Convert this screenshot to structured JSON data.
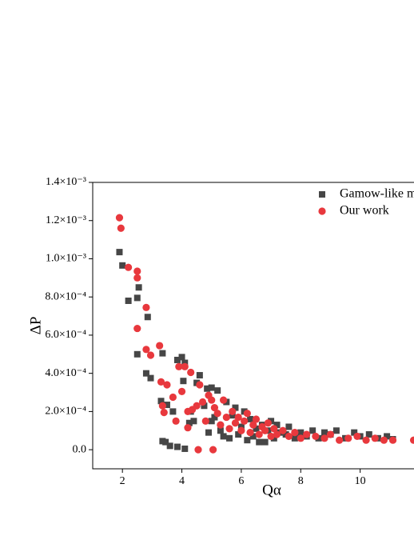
{
  "chart_data": {
    "type": "scatter",
    "x_label": "Qα",
    "y_label": "ΔP",
    "xlim": [
      1,
      12
    ],
    "ylim": [
      -0.0001,
      0.0014
    ],
    "xticks": [
      2,
      4,
      6,
      8,
      10
    ],
    "yticks": [
      {
        "value": 0,
        "label": "0.0"
      },
      {
        "value": 0.0002,
        "label": "2.0×10⁻⁴"
      },
      {
        "value": 0.0004,
        "label": "4.0×10⁻⁴"
      },
      {
        "value": 0.0006,
        "label": "6.0×10⁻⁴"
      },
      {
        "value": 0.0008,
        "label": "8.0×10⁻⁴"
      },
      {
        "value": 0.001,
        "label": "1.0×10⁻³"
      },
      {
        "value": 0.0012,
        "label": "1.2×10⁻³"
      },
      {
        "value": 0.0014,
        "label": "1.4×10⁻³"
      }
    ],
    "legend": "top-right",
    "series": [
      {
        "name": "Gamow-like model",
        "color": "#464646",
        "marker": "square",
        "x": [
          1.9,
          2.0,
          2.2,
          2.5,
          2.55,
          2.5,
          2.8,
          2.85,
          2.95,
          3.3,
          3.35,
          3.35,
          3.45,
          3.5,
          3.6,
          3.7,
          3.85,
          3.85,
          4.0,
          4.05,
          4.1,
          4.1,
          4.25,
          4.3,
          4.4,
          4.5,
          4.6,
          4.75,
          4.85,
          4.9,
          5.0,
          5.0,
          5.1,
          5.2,
          5.3,
          5.4,
          5.5,
          5.6,
          5.7,
          5.8,
          5.9,
          6.0,
          6.1,
          6.2,
          6.3,
          6.4,
          6.5,
          6.6,
          6.7,
          6.8,
          6.9,
          7.0,
          7.1,
          7.2,
          7.3,
          7.5,
          7.6,
          7.8,
          8.0,
          8.2,
          8.4,
          8.6,
          8.8,
          9.0,
          9.2,
          9.5,
          9.8,
          10.0,
          10.3,
          10.6,
          10.9,
          11.1
        ],
        "values": [
          0.001035,
          0.000965,
          0.00078,
          0.000795,
          0.00085,
          0.0005,
          0.0004,
          0.000695,
          0.000375,
          0.000255,
          0.000505,
          4.5e-05,
          4e-05,
          0.000235,
          2e-05,
          0.0002,
          1.5e-05,
          0.00047,
          0.000485,
          0.00036,
          0.000455,
          5e-06,
          0.00014,
          0.0002,
          0.00015,
          0.00035,
          0.00039,
          0.00023,
          0.00032,
          9e-05,
          0.000325,
          0.00015,
          0.00017,
          0.00031,
          0.0001,
          7e-05,
          0.00025,
          6e-05,
          0.00018,
          0.00022,
          8e-05,
          0.00012,
          0.0002,
          5e-05,
          0.00016,
          7e-05,
          0.00011,
          4e-05,
          0.00013,
          4e-05,
          0.0001,
          0.00015,
          6e-05,
          0.00013,
          9e-05,
          8e-05,
          0.00012,
          6e-05,
          9e-05,
          7e-05,
          0.0001,
          6e-05,
          9e-05,
          8e-05,
          0.0001,
          6e-05,
          9e-05,
          7e-05,
          8e-05,
          6e-05,
          7e-05,
          5.5e-05
        ]
      },
      {
        "name": "Our work",
        "color": "#e8383d",
        "marker": "circle",
        "x": [
          1.9,
          1.95,
          2.2,
          2.5,
          2.5,
          2.5,
          2.8,
          2.8,
          2.95,
          3.25,
          3.3,
          3.35,
          3.4,
          3.5,
          3.7,
          3.8,
          3.9,
          4.0,
          4.1,
          4.2,
          4.2,
          4.3,
          4.35,
          4.5,
          4.55,
          4.6,
          4.7,
          4.8,
          4.9,
          5.0,
          5.05,
          5.1,
          5.2,
          5.3,
          5.4,
          5.5,
          5.6,
          5.7,
          5.8,
          5.9,
          6.0,
          6.1,
          6.2,
          6.3,
          6.4,
          6.5,
          6.6,
          6.7,
          6.8,
          6.9,
          7.0,
          7.1,
          7.2,
          7.4,
          7.6,
          7.8,
          8.0,
          8.2,
          8.5,
          8.8,
          9.0,
          9.3,
          9.6,
          9.9,
          10.2,
          10.5,
          10.8,
          11.1,
          11.8
        ],
        "values": [
          0.001215,
          0.00116,
          0.000955,
          0.000935,
          0.0009,
          0.000635,
          0.000745,
          0.000525,
          0.000495,
          0.000545,
          0.000355,
          0.00023,
          0.000195,
          0.00034,
          0.000275,
          0.00015,
          0.000435,
          0.000305,
          0.000435,
          0.0002,
          0.000115,
          0.000405,
          0.00021,
          0.00023,
          0,
          0.00034,
          0.00025,
          0.00015,
          0.000285,
          0.00026,
          0,
          0.00022,
          0.00019,
          0.00013,
          0.00026,
          0.00017,
          0.00011,
          0.0002,
          0.00014,
          0.00017,
          0.0001,
          0.00015,
          0.00019,
          9e-05,
          0.00013,
          0.00016,
          8e-05,
          0.00012,
          0.0001,
          0.00014,
          7e-05,
          0.00011,
          8e-05,
          0.0001,
          7e-05,
          9e-05,
          6e-05,
          8e-05,
          7e-05,
          6e-05,
          8e-05,
          5e-05,
          6e-05,
          7e-05,
          5e-05,
          6e-05,
          5e-05,
          5e-05,
          5e-05
        ]
      }
    ]
  }
}
